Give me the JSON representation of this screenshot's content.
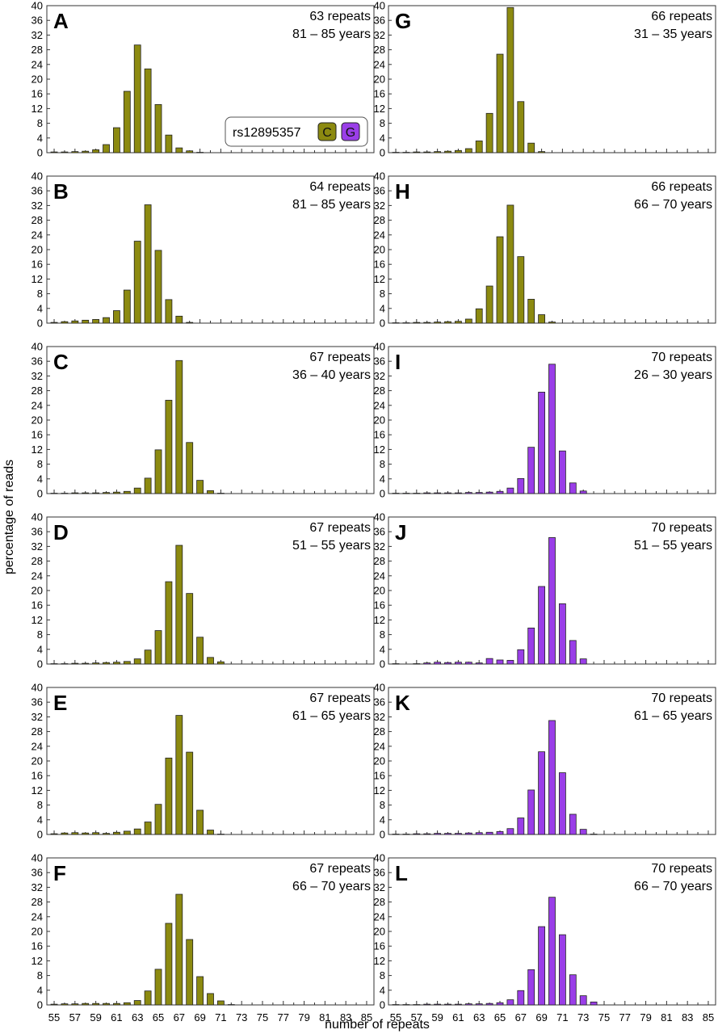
{
  "figure": {
    "ylabel": "percentage of reads",
    "xlabel": "number of repeats",
    "legend": {
      "title": "rs12895357",
      "alleles": [
        "C",
        "G"
      ]
    },
    "colors": {
      "C": "#8c8a10",
      "G": "#9a3ee8"
    },
    "xticks": [
      55,
      57,
      59,
      61,
      63,
      65,
      67,
      69,
      71,
      73,
      75,
      77,
      79,
      81,
      83,
      85
    ],
    "yticks": [
      0,
      4,
      8,
      12,
      16,
      20,
      24,
      28,
      32,
      36,
      40
    ]
  },
  "chart_data": [
    {
      "type": "bar",
      "panel": "A",
      "repeats_label": "63 repeats",
      "age_label": "81 – 85 years",
      "allele": "C",
      "xlabel": "number of repeats",
      "ylabel": "percentage of reads",
      "ylim": [
        0,
        40
      ],
      "x": [
        55,
        56,
        57,
        58,
        59,
        60,
        61,
        62,
        63,
        64,
        65,
        66,
        67,
        68,
        69,
        70,
        71,
        72,
        73,
        74,
        75,
        76,
        77,
        78,
        79,
        80,
        81,
        82,
        83,
        84,
        85
      ],
      "values": [
        0.2,
        0.2,
        0.3,
        0.4,
        0.8,
        2.2,
        6.8,
        16.7,
        29.3,
        22.8,
        13.1,
        4.8,
        1.3,
        0.5,
        0.1,
        0,
        0,
        0,
        0,
        0,
        0,
        0,
        0,
        0,
        0,
        0,
        0,
        0,
        0,
        0,
        0
      ]
    },
    {
      "type": "bar",
      "panel": "B",
      "repeats_label": "64 repeats",
      "age_label": "81 – 85 years",
      "allele": "C",
      "xlabel": "number of repeats",
      "ylabel": "percentage of reads",
      "ylim": [
        0,
        40
      ],
      "x": [
        55,
        56,
        57,
        58,
        59,
        60,
        61,
        62,
        63,
        64,
        65,
        66,
        67,
        68,
        69,
        70,
        71,
        72,
        73,
        74,
        75,
        76,
        77,
        78,
        79,
        80,
        81,
        82,
        83,
        84,
        85
      ],
      "values": [
        0.2,
        0.4,
        0.6,
        0.8,
        1.0,
        1.5,
        3.4,
        9.0,
        22.3,
        32.2,
        19.8,
        6.4,
        1.9,
        0.2,
        0,
        0,
        0,
        0,
        0,
        0,
        0,
        0,
        0,
        0,
        0,
        0,
        0,
        0,
        0,
        0,
        0
      ]
    },
    {
      "type": "bar",
      "panel": "C",
      "repeats_label": "67 repeats",
      "age_label": "36 – 40 years",
      "allele": "C",
      "xlabel": "number of repeats",
      "ylabel": "percentage of reads",
      "ylim": [
        0,
        40
      ],
      "x": [
        55,
        56,
        57,
        58,
        59,
        60,
        61,
        62,
        63,
        64,
        65,
        66,
        67,
        68,
        69,
        70,
        71,
        72,
        73,
        74,
        75,
        76,
        77,
        78,
        79,
        80,
        81,
        82,
        83,
        84,
        85
      ],
      "values": [
        0.1,
        0.1,
        0.2,
        0.2,
        0.2,
        0.3,
        0.4,
        0.6,
        1.5,
        4.2,
        11.9,
        25.4,
        36.2,
        13.9,
        3.6,
        0.8,
        0.1,
        0,
        0,
        0,
        0,
        0,
        0,
        0,
        0,
        0,
        0,
        0,
        0,
        0,
        0
      ]
    },
    {
      "type": "bar",
      "panel": "D",
      "repeats_label": "67 repeats",
      "age_label": "51 – 55 years",
      "allele": "C",
      "xlabel": "number of repeats",
      "ylabel": "percentage of reads",
      "ylim": [
        0,
        40
      ],
      "x": [
        55,
        56,
        57,
        58,
        59,
        60,
        61,
        62,
        63,
        64,
        65,
        66,
        67,
        68,
        69,
        70,
        71,
        72,
        73,
        74,
        75,
        76,
        77,
        78,
        79,
        80,
        81,
        82,
        83,
        84,
        85
      ],
      "values": [
        0.1,
        0.1,
        0.2,
        0.2,
        0.3,
        0.4,
        0.5,
        0.7,
        1.4,
        3.8,
        9.1,
        22.4,
        32.3,
        19.2,
        7.3,
        1.8,
        0.6,
        0,
        0,
        0,
        0,
        0,
        0,
        0,
        0,
        0,
        0,
        0,
        0,
        0,
        0
      ]
    },
    {
      "type": "bar",
      "panel": "E",
      "repeats_label": "67 repeats",
      "age_label": "61 – 65 years",
      "allele": "C",
      "xlabel": "number of repeats",
      "ylabel": "percentage of reads",
      "ylim": [
        0,
        40
      ],
      "x": [
        55,
        56,
        57,
        58,
        59,
        60,
        61,
        62,
        63,
        64,
        65,
        66,
        67,
        68,
        69,
        70,
        71,
        72,
        73,
        74,
        75,
        76,
        77,
        78,
        79,
        80,
        81,
        82,
        83,
        84,
        85
      ],
      "values": [
        0.2,
        0.4,
        0.5,
        0.4,
        0.5,
        0.3,
        0.6,
        0.9,
        1.5,
        3.4,
        8.2,
        20.8,
        32.4,
        22.4,
        6.6,
        1.2,
        0.1,
        0,
        0,
        0,
        0,
        0,
        0,
        0,
        0,
        0,
        0,
        0,
        0,
        0,
        0
      ]
    },
    {
      "type": "bar",
      "panel": "F",
      "repeats_label": "67 repeats",
      "age_label": "66 – 70 years",
      "allele": "C",
      "xlabel": "number of repeats",
      "ylabel": "percentage of reads",
      "ylim": [
        0,
        40
      ],
      "x": [
        55,
        56,
        57,
        58,
        59,
        60,
        61,
        62,
        63,
        64,
        65,
        66,
        67,
        68,
        69,
        70,
        71,
        72,
        73,
        74,
        75,
        76,
        77,
        78,
        79,
        80,
        81,
        82,
        83,
        84,
        85
      ],
      "values": [
        0.2,
        0.3,
        0.3,
        0.4,
        0.4,
        0.4,
        0.4,
        0.6,
        1.2,
        3.8,
        9.7,
        22.2,
        30.1,
        17.8,
        7.7,
        3.1,
        1.1,
        0.1,
        0,
        0,
        0,
        0,
        0,
        0,
        0,
        0,
        0,
        0,
        0,
        0,
        0
      ]
    },
    {
      "type": "bar",
      "panel": "G",
      "repeats_label": "66 repeats",
      "age_label": "31 – 35 years",
      "allele": "C",
      "xlabel": "number of repeats",
      "ylabel": "percentage of reads",
      "ylim": [
        0,
        40
      ],
      "x": [
        55,
        56,
        57,
        58,
        59,
        60,
        61,
        62,
        63,
        64,
        65,
        66,
        67,
        68,
        69,
        70,
        71,
        72,
        73,
        74,
        75,
        76,
        77,
        78,
        79,
        80,
        81,
        82,
        83,
        84,
        85
      ],
      "values": [
        0.1,
        0.1,
        0.2,
        0.2,
        0.3,
        0.4,
        0.6,
        1.1,
        3.2,
        10.7,
        26.8,
        39.5,
        13.9,
        2.6,
        0.3,
        0,
        0,
        0,
        0,
        0,
        0,
        0,
        0,
        0,
        0,
        0,
        0,
        0,
        0,
        0,
        0
      ]
    },
    {
      "type": "bar",
      "panel": "H",
      "repeats_label": "66 repeats",
      "age_label": "66 – 70 years",
      "allele": "C",
      "xlabel": "number of repeats",
      "ylabel": "percentage of reads",
      "ylim": [
        0,
        40
      ],
      "x": [
        55,
        56,
        57,
        58,
        59,
        60,
        61,
        62,
        63,
        64,
        65,
        66,
        67,
        68,
        69,
        70,
        71,
        72,
        73,
        74,
        75,
        76,
        77,
        78,
        79,
        80,
        81,
        82,
        83,
        84,
        85
      ],
      "values": [
        0.1,
        0.1,
        0.2,
        0.2,
        0.3,
        0.4,
        0.5,
        1.1,
        3.9,
        10.1,
        23.5,
        32.1,
        18.1,
        6.5,
        2.3,
        0.3,
        0,
        0,
        0,
        0,
        0,
        0,
        0,
        0,
        0,
        0,
        0,
        0,
        0,
        0,
        0
      ]
    },
    {
      "type": "bar",
      "panel": "I",
      "repeats_label": "70 repeats",
      "age_label": "26 – 30 years",
      "allele": "G",
      "xlabel": "number of repeats",
      "ylabel": "percentage of reads",
      "ylim": [
        0,
        40
      ],
      "x": [
        55,
        56,
        57,
        58,
        59,
        60,
        61,
        62,
        63,
        64,
        65,
        66,
        67,
        68,
        69,
        70,
        71,
        72,
        73,
        74,
        75,
        76,
        77,
        78,
        79,
        80,
        81,
        82,
        83,
        84,
        85
      ],
      "values": [
        0.1,
        0.1,
        0.1,
        0.2,
        0.2,
        0.2,
        0.2,
        0.3,
        0.3,
        0.4,
        0.6,
        1.5,
        4.1,
        12.6,
        27.6,
        35.2,
        11.6,
        2.9,
        0.7,
        0,
        0,
        0,
        0,
        0,
        0,
        0,
        0,
        0,
        0,
        0,
        0
      ]
    },
    {
      "type": "bar",
      "panel": "J",
      "repeats_label": "70 repeats",
      "age_label": "51 – 55 years",
      "allele": "G",
      "xlabel": "number of repeats",
      "ylabel": "percentage of reads",
      "ylim": [
        0,
        40
      ],
      "x": [
        55,
        56,
        57,
        58,
        59,
        60,
        61,
        62,
        63,
        64,
        65,
        66,
        67,
        68,
        69,
        70,
        71,
        72,
        73,
        74,
        75,
        76,
        77,
        78,
        79,
        80,
        81,
        82,
        83,
        84,
        85
      ],
      "values": [
        0.1,
        0,
        0.1,
        0.3,
        0.5,
        0.4,
        0.5,
        0.5,
        0.3,
        1.5,
        1.1,
        1.0,
        3.9,
        9.8,
        21.1,
        34.4,
        16.4,
        6.4,
        1.4,
        0,
        0,
        0,
        0,
        0,
        0,
        0,
        0,
        0,
        0,
        0,
        0
      ]
    },
    {
      "type": "bar",
      "panel": "K",
      "repeats_label": "70 repeats",
      "age_label": "61 – 65 years",
      "allele": "G",
      "xlabel": "number of repeats",
      "ylabel": "percentage of reads",
      "ylim": [
        0,
        40
      ],
      "x": [
        55,
        56,
        57,
        58,
        59,
        60,
        61,
        62,
        63,
        64,
        65,
        66,
        67,
        68,
        69,
        70,
        71,
        72,
        73,
        74,
        75,
        76,
        77,
        78,
        79,
        80,
        81,
        82,
        83,
        84,
        85
      ],
      "values": [
        0.1,
        0.1,
        0.2,
        0.2,
        0.3,
        0.3,
        0.3,
        0.4,
        0.5,
        0.6,
        0.8,
        1.6,
        4.5,
        12.1,
        22.5,
        31.0,
        16.8,
        5.5,
        1.4,
        0.1,
        0,
        0,
        0,
        0,
        0,
        0,
        0,
        0,
        0,
        0,
        0
      ]
    },
    {
      "type": "bar",
      "panel": "L",
      "repeats_label": "70 repeats",
      "age_label": "66 – 70 years",
      "allele": "G",
      "xlabel": "number of repeats",
      "ylabel": "percentage of reads",
      "ylim": [
        0,
        40
      ],
      "x": [
        55,
        56,
        57,
        58,
        59,
        60,
        61,
        62,
        63,
        64,
        65,
        66,
        67,
        68,
        69,
        70,
        71,
        72,
        73,
        74,
        75,
        76,
        77,
        78,
        79,
        80,
        81,
        82,
        83,
        84,
        85
      ],
      "values": [
        0.1,
        0.1,
        0.1,
        0.2,
        0.2,
        0.2,
        0.2,
        0.3,
        0.3,
        0.4,
        0.6,
        1.4,
        3.9,
        9.6,
        21.3,
        29.3,
        19.1,
        8.2,
        2.5,
        0.8,
        0,
        0,
        0,
        0,
        0,
        0,
        0,
        0,
        0,
        0,
        0
      ]
    }
  ]
}
